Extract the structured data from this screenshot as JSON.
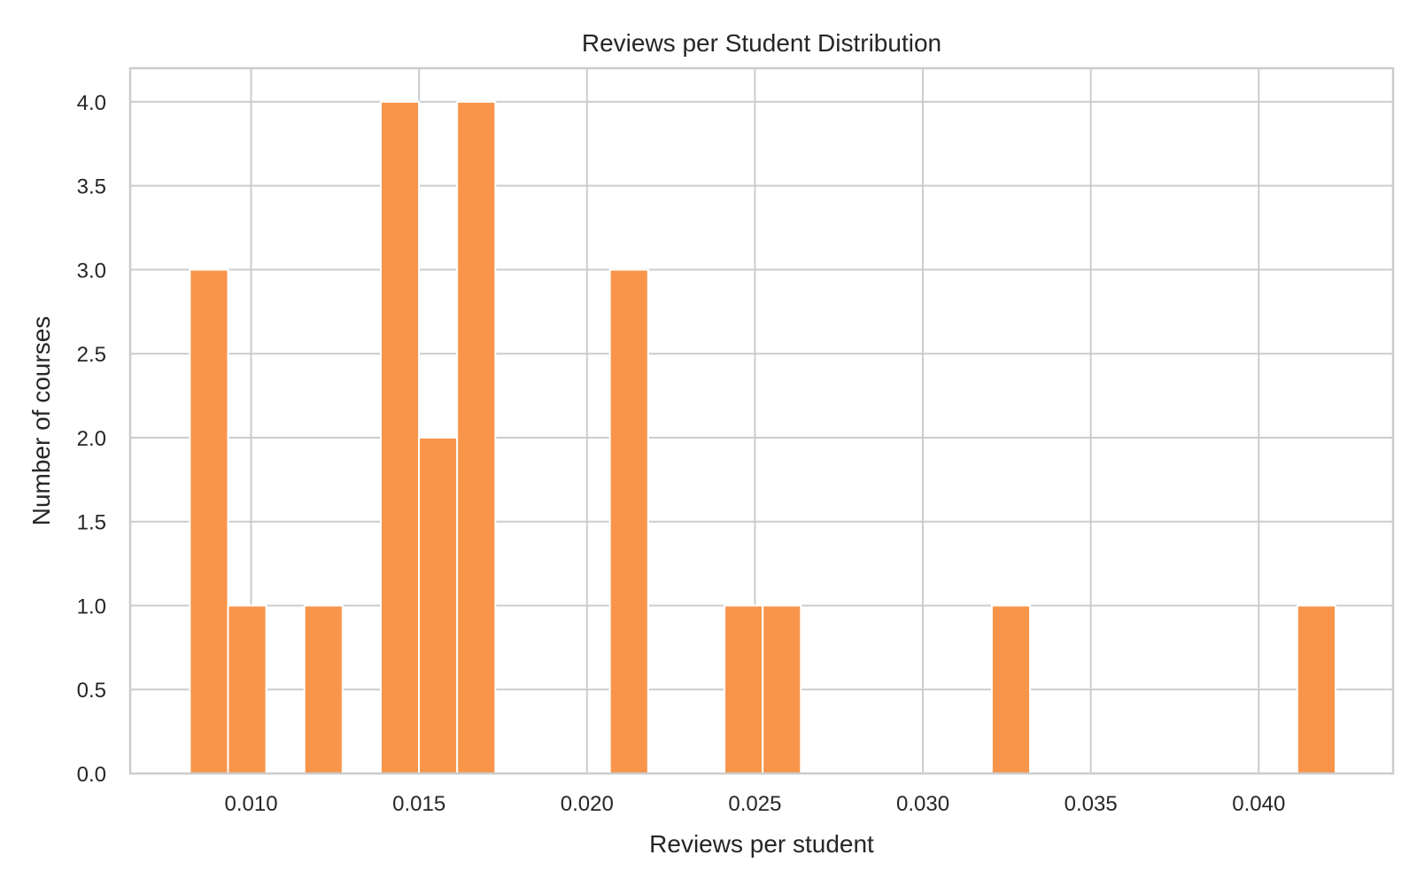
{
  "chart_data": {
    "type": "bar",
    "title": "Reviews per Student Distribution",
    "xlabel": "Reviews per student",
    "ylabel": "Number of courses",
    "xlim": [
      0.0064,
      0.044
    ],
    "ylim": [
      0,
      4.2
    ],
    "x_ticks": [
      0.01,
      0.015,
      0.02,
      0.025,
      0.03,
      0.035,
      0.04
    ],
    "x_tick_labels": [
      "0.010",
      "0.015",
      "0.020",
      "0.025",
      "0.030",
      "0.035",
      "0.040"
    ],
    "y_ticks": [
      0,
      0.5,
      1,
      1.5,
      2,
      2.5,
      3,
      3.5,
      4
    ],
    "y_tick_labels": [
      "0.0",
      "0.5",
      "1.0",
      "1.5",
      "2.0",
      "2.5",
      "3.0",
      "3.5",
      "4.0"
    ],
    "bin_width": 0.001137,
    "bins": [
      {
        "x0": 0.008176,
        "count": 3
      },
      {
        "x0": 0.009313,
        "count": 1
      },
      {
        "x0": 0.011587,
        "count": 1
      },
      {
        "x0": 0.013861,
        "count": 4
      },
      {
        "x0": 0.014998,
        "count": 2
      },
      {
        "x0": 0.016135,
        "count": 4
      },
      {
        "x0": 0.020683,
        "count": 3
      },
      {
        "x0": 0.024094,
        "count": 1
      },
      {
        "x0": 0.025231,
        "count": 1
      },
      {
        "x0": 0.032053,
        "count": 1
      },
      {
        "x0": 0.041149,
        "count": 1
      }
    ],
    "grid": true,
    "colors": {
      "bar": "#F8954A",
      "bar_edge": "#ffffff",
      "grid": "#cccccc",
      "spine": "#cccccc",
      "text": "#262626"
    }
  }
}
